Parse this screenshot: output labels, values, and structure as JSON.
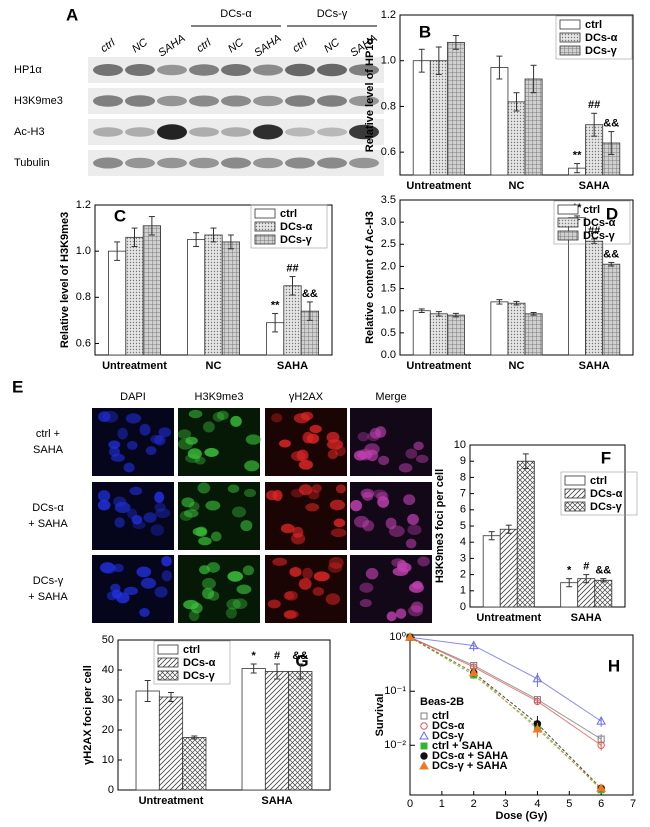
{
  "blot": {
    "label": "A",
    "lanes": [
      "ctrl",
      "NC",
      "SAHA",
      "ctrl",
      "NC",
      "SAHA",
      "ctrl",
      "NC",
      "SAHA"
    ],
    "groups": [
      "DCs-α",
      "DCs-γ"
    ],
    "rows": [
      "HP1α",
      "H3K9me3",
      "Ac-H3",
      "Tubulin"
    ]
  },
  "micrographs": {
    "label": "E",
    "columns": [
      "DAPI",
      "H3K9me3",
      "γH2AX",
      "Merge"
    ],
    "rows": [
      [
        "ctrl +",
        "SAHA"
      ],
      [
        "DCs-α",
        "+ SAHA"
      ],
      [
        "DCs-γ",
        "+ SAHA"
      ]
    ]
  },
  "chart_data": [
    {
      "type": "bar",
      "label": "B",
      "y_label": "Relative level of HP1α",
      "categories": [
        "Untreatment",
        "NC",
        "SAHA"
      ],
      "series": [
        {
          "name": "ctrl",
          "color": "#ffffff",
          "values": [
            1.0,
            0.97,
            0.53
          ],
          "errors": [
            0.05,
            0.05,
            0.02
          ],
          "annotations": [
            null,
            null,
            "**"
          ]
        },
        {
          "name": "DCs-α",
          "color": "#d9d9d9",
          "hatch": "dots",
          "values": [
            1.0,
            0.82,
            0.72
          ],
          "errors": [
            0.06,
            0.04,
            0.05
          ],
          "annotations": [
            null,
            null,
            "##"
          ]
        },
        {
          "name": "DCs-γ",
          "color": "#bfbfbf",
          "hatch": "grid",
          "values": [
            1.08,
            0.92,
            0.64
          ],
          "errors": [
            0.03,
            0.06,
            0.05
          ],
          "annotations": [
            null,
            null,
            "&&"
          ]
        }
      ],
      "ylim": [
        0.5,
        1.2
      ],
      "yticks": [
        0.6,
        0.8,
        {
          "value": 1,
          "label": "1.0"
        },
        1.2
      ],
      "legend": "upper right"
    },
    {
      "type": "bar",
      "label": "C",
      "y_label": "Relative level of H3K9me3",
      "categories": [
        "Untreatment",
        "NC",
        "SAHA"
      ],
      "series": [
        {
          "name": "ctrl",
          "color": "#ffffff",
          "values": [
            1.0,
            1.05,
            0.69
          ],
          "errors": [
            0.04,
            0.03,
            0.04
          ],
          "annotations": [
            null,
            null,
            "**"
          ]
        },
        {
          "name": "DCs-α",
          "color": "#d9d9d9",
          "hatch": "dots",
          "values": [
            1.06,
            1.07,
            0.85
          ],
          "errors": [
            0.04,
            0.03,
            0.04
          ],
          "annotations": [
            null,
            null,
            "##"
          ]
        },
        {
          "name": "DCs-γ",
          "color": "#bfbfbf",
          "hatch": "grid",
          "values": [
            1.11,
            1.04,
            0.74
          ],
          "errors": [
            0.04,
            0.03,
            0.04
          ],
          "annotations": [
            null,
            null,
            "&&"
          ]
        }
      ],
      "ylim": [
        0.55,
        1.2
      ],
      "yticks": [
        0.6,
        0.8,
        {
          "value": 1,
          "label": "1.0"
        },
        1.2
      ],
      "legend": "upper right"
    },
    {
      "type": "bar",
      "label": "D",
      "y_label": "Relative content of Ac-H3",
      "categories": [
        "Untreatment",
        "NC",
        "SAHA"
      ],
      "series": [
        {
          "name": "ctrl",
          "color": "#ffffff",
          "values": [
            1.0,
            1.2,
            3.1
          ],
          "errors": [
            0.04,
            0.05,
            0.04
          ],
          "annotations": [
            null,
            null,
            "**"
          ]
        },
        {
          "name": "DCs-α",
          "color": "#d9d9d9",
          "hatch": "dots",
          "values": [
            0.93,
            1.17,
            2.57
          ],
          "errors": [
            0.05,
            0.04,
            0.05
          ],
          "annotations": [
            null,
            null,
            "##"
          ]
        },
        {
          "name": "DCs-γ",
          "color": "#bfbfbf",
          "hatch": "grid",
          "values": [
            0.9,
            0.93,
            2.05
          ],
          "errors": [
            0.04,
            0.03,
            0.04
          ],
          "annotations": [
            null,
            null,
            "&&"
          ]
        }
      ],
      "ylim": [
        0,
        3.5
      ],
      "yticks": [
        {
          "value": 0,
          "label": "0.0"
        },
        0.5,
        {
          "value": 1,
          "label": "1.0"
        },
        1.5,
        {
          "value": 2,
          "label": "2.0"
        },
        2.5,
        {
          "value": 3,
          "label": "3.0"
        },
        3.5
      ],
      "legend": "upper left"
    },
    {
      "type": "bar",
      "label": "F",
      "y_label": "H3K9me3 foci per cell",
      "categories": [
        "Untreatment",
        "SAHA"
      ],
      "series": [
        {
          "name": "ctrl",
          "color": "#ffffff",
          "values": [
            4.4,
            1.5
          ],
          "errors": [
            0.25,
            0.25
          ],
          "annotations": [
            null,
            "*"
          ]
        },
        {
          "name": "DCs-α",
          "color": "#ffffff",
          "hatch": "diagonal",
          "values": [
            4.8,
            1.75
          ],
          "errors": [
            0.25,
            0.25
          ],
          "annotations": [
            null,
            "#"
          ]
        },
        {
          "name": "DCs-γ",
          "color": "#ffffff",
          "hatch": "crosshatch",
          "values": [
            9.0,
            1.65
          ],
          "errors": [
            0.45,
            0.1
          ],
          "annotations": [
            null,
            "&&"
          ]
        }
      ],
      "ylim": [
        0,
        10
      ],
      "yticks": [
        0,
        1,
        2,
        3,
        4,
        5,
        6,
        7,
        8,
        9,
        10
      ],
      "legend": "upper right"
    },
    {
      "type": "bar",
      "label": "G",
      "y_label": "γH2AX foci per cell",
      "categories": [
        "Untreatment",
        "SAHA"
      ],
      "series": [
        {
          "name": "ctrl",
          "color": "#ffffff",
          "values": [
            33,
            40.5
          ],
          "errors": [
            3.5,
            1.5
          ],
          "annotations": [
            null,
            "*"
          ]
        },
        {
          "name": "DCs-α",
          "color": "#ffffff",
          "hatch": "diagonal",
          "values": [
            31,
            39.5
          ],
          "errors": [
            1.5,
            2.5
          ],
          "annotations": [
            null,
            "#"
          ]
        },
        {
          "name": "DCs-γ",
          "color": "#ffffff",
          "hatch": "crosshatch",
          "values": [
            17.5,
            39.5
          ],
          "errors": [
            0.5,
            2.5
          ],
          "annotations": [
            null,
            "&&"
          ]
        }
      ],
      "ylim": [
        0,
        50
      ],
      "yticks": [
        0,
        10,
        20,
        30,
        40,
        50
      ],
      "legend": "upper left"
    },
    {
      "type": "scatter",
      "label": "H",
      "x_label": "Dose (Gy)",
      "y_label": "Survival",
      "legend_title": "Beas-2B",
      "x": [
        0,
        2,
        4,
        6
      ],
      "series": [
        {
          "name": "ctrl",
          "color": "#7f7f7f",
          "marker": "square",
          "filled": false,
          "values": [
            1,
            0.3,
            0.07,
            0.013
          ],
          "errors": [
            0.02,
            0.03,
            0.01,
            0.003
          ]
        },
        {
          "name": "DCs-α",
          "color": "#e05a5a",
          "marker": "circle",
          "filled": false,
          "values": [
            1,
            0.28,
            0.065,
            0.01
          ],
          "errors": [
            0.02,
            0.03,
            0.01,
            0.002
          ]
        },
        {
          "name": "DCs-γ",
          "color": "#6b6bef",
          "marker": "triangle",
          "filled": false,
          "values": [
            1,
            0.7,
            0.17,
            0.028
          ],
          "errors": [
            0.02,
            0.15,
            0.05,
            0.006
          ]
        },
        {
          "name": "ctrl + SAHA",
          "color": "#2db82d",
          "marker": "square",
          "filled": true,
          "dashed": true,
          "values": [
            1,
            0.2,
            0.022,
            0.0015
          ],
          "errors": [
            0.02,
            0.03,
            0.008,
            0.0002
          ]
        },
        {
          "name": "DCs-α + SAHA",
          "color": "#111111",
          "marker": "circle",
          "filled": true,
          "dashed": true,
          "values": [
            1,
            0.22,
            0.025,
            0.0016
          ],
          "errors": [
            0.02,
            0.03,
            0.01,
            0.0002
          ]
        },
        {
          "name": "DCs-γ + SAHA",
          "color": "#f07820",
          "marker": "triangle",
          "filled": true,
          "dashed": true,
          "values": [
            1,
            0.22,
            0.02,
            0.0016
          ],
          "errors": [
            0.02,
            0.03,
            0.006,
            0.0002
          ]
        }
      ],
      "xlim": [
        0,
        7
      ],
      "xticks": [
        0,
        1,
        2,
        3,
        4,
        5,
        6,
        7
      ],
      "ylim": [
        0.0012,
        1.1
      ],
      "yticks": [
        {
          "value": 1,
          "label": "10⁰"
        },
        {
          "value": 0.1,
          "label": "10⁻¹"
        },
        {
          "value": 0.01,
          "label": "10⁻²"
        }
      ],
      "log_y": true,
      "legend": "lower left"
    }
  ]
}
